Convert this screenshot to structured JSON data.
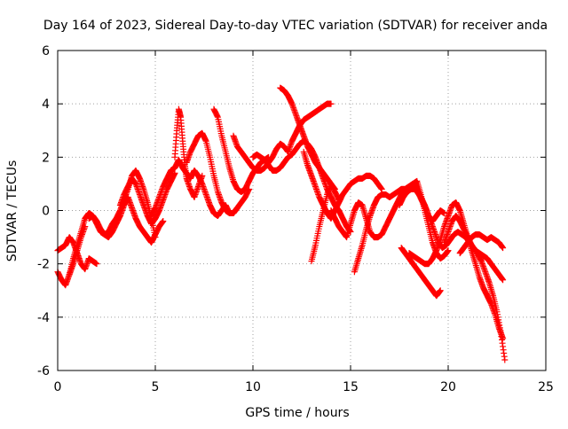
{
  "chart_data": {
    "type": "scatter",
    "title": "Day 164 of 2023, Sidereal Day-to-day VTEC variation (SDTVAR) for receiver anda",
    "xlabel": "GPS time / hours",
    "ylabel": "SDTVAR / TECUs",
    "xlim": [
      0,
      25
    ],
    "ylim": [
      -6,
      6
    ],
    "xticks": [
      0,
      5,
      10,
      15,
      20,
      25
    ],
    "yticks": [
      -6,
      -4,
      -2,
      0,
      2,
      4,
      6
    ],
    "grid": true,
    "marker": "+",
    "color": "#ff0000",
    "series": [
      {
        "name": "track-1",
        "x": [
          0.0,
          0.2,
          0.4,
          0.6,
          0.8,
          1.0,
          1.2,
          1.4,
          1.6,
          1.8,
          2.0,
          2.2,
          2.4,
          2.6,
          2.8,
          3.0,
          3.2,
          3.4,
          3.6,
          3.8,
          4.0,
          4.2,
          4.4,
          4.6,
          4.8,
          5.0,
          5.2,
          5.4
        ],
        "y": [
          -2.3,
          -2.6,
          -2.8,
          -2.4,
          -1.8,
          -1.3,
          -0.8,
          -0.3,
          -0.1,
          -0.2,
          -0.5,
          -0.8,
          -0.9,
          -1.0,
          -0.8,
          -0.5,
          -0.2,
          0.2,
          0.5,
          0.1,
          -0.3,
          -0.6,
          -0.8,
          -1.0,
          -1.2,
          -0.9,
          -0.6,
          -0.4
        ]
      },
      {
        "name": "track-2",
        "x": [
          0.0,
          0.2,
          0.4,
          0.6,
          0.8,
          1.0,
          1.2,
          1.4,
          1.6,
          1.8,
          2.0
        ],
        "y": [
          -1.5,
          -1.4,
          -1.3,
          -1.0,
          -1.2,
          -1.6,
          -2.0,
          -2.2,
          -1.8,
          -1.9,
          -2.0
        ]
      },
      {
        "name": "track-3",
        "x": [
          0.6,
          0.8,
          1.0,
          1.2,
          1.4
        ],
        "y": [
          -2.4,
          -2.0,
          -1.5,
          -1.0,
          -0.6
        ]
      },
      {
        "name": "track-4",
        "x": [
          1.6,
          1.8,
          2.0,
          2.2,
          2.4,
          2.6,
          2.8,
          3.0,
          3.2,
          3.4,
          3.6,
          3.8,
          4.0,
          4.2,
          4.4,
          4.6,
          4.8,
          5.0
        ],
        "y": [
          -0.3,
          -0.2,
          -0.4,
          -0.7,
          -0.9,
          -0.8,
          -0.5,
          -0.3,
          0.0,
          0.4,
          0.8,
          1.3,
          1.5,
          1.2,
          0.8,
          0.3,
          -0.3,
          -1.0
        ]
      },
      {
        "name": "track-5",
        "x": [
          3.2,
          3.4,
          3.6,
          3.8,
          4.0,
          4.2,
          4.4,
          4.6,
          4.8,
          5.0,
          5.2,
          5.4,
          5.6,
          5.8,
          6.0
        ],
        "y": [
          0.2,
          0.6,
          0.9,
          1.2,
          1.0,
          0.6,
          0.2,
          -0.2,
          -0.5,
          -0.3,
          0.0,
          0.4,
          0.8,
          1.1,
          1.4
        ]
      },
      {
        "name": "track-6",
        "x": [
          4.8,
          5.0,
          5.2,
          5.4,
          5.6,
          5.8,
          6.0,
          6.2,
          6.4,
          6.6,
          6.8,
          7.0,
          7.2,
          7.4,
          7.6,
          7.8,
          8.0,
          8.2,
          8.4,
          8.6,
          8.8,
          9.0,
          9.2
        ],
        "y": [
          -0.2,
          0.1,
          0.5,
          0.9,
          1.2,
          1.5,
          1.6,
          1.9,
          1.6,
          1.4,
          1.2,
          1.5,
          1.3,
          1.0,
          0.6,
          0.2,
          -0.1,
          -0.2,
          0.0,
          0.2,
          -0.1,
          -0.1,
          0.1
        ]
      },
      {
        "name": "track-7",
        "x": [
          6.0,
          6.1,
          6.2,
          6.3,
          6.4,
          6.5,
          6.6,
          6.8,
          7.0,
          7.2,
          7.4
        ],
        "y": [
          2.0,
          3.0,
          3.8,
          3.5,
          2.6,
          1.8,
          1.2,
          0.8,
          0.5,
          0.9,
          1.3
        ]
      },
      {
        "name": "track-8",
        "x": [
          6.6,
          6.8,
          7.0,
          7.2,
          7.4,
          7.6,
          7.8,
          8.0,
          8.2,
          8.4,
          8.6,
          8.8,
          9.0,
          9.2,
          9.4,
          9.6,
          9.8
        ],
        "y": [
          1.8,
          2.2,
          2.5,
          2.8,
          2.9,
          2.6,
          2.0,
          1.3,
          0.7,
          0.3,
          0.0,
          -0.1,
          -0.1,
          0.1,
          0.3,
          0.5,
          0.8
        ]
      },
      {
        "name": "track-9",
        "x": [
          8.0,
          8.2,
          8.4,
          8.6,
          8.8,
          9.0,
          9.2,
          9.4,
          9.6,
          9.8,
          10.0,
          10.2,
          10.4,
          10.6,
          10.8
        ],
        "y": [
          3.8,
          3.5,
          2.8,
          2.2,
          1.6,
          1.1,
          0.8,
          0.7,
          0.8,
          1.1,
          1.4,
          1.6,
          1.8,
          1.9,
          2.0
        ]
      },
      {
        "name": "track-10",
        "x": [
          9.0,
          9.2,
          9.4,
          9.6,
          9.8,
          10.0,
          10.2,
          10.4,
          10.6,
          10.8,
          11.0,
          11.2,
          11.4,
          11.6,
          11.8,
          12.0,
          12.2,
          12.4,
          12.6,
          12.8,
          13.0,
          13.2,
          13.4,
          13.6,
          13.8,
          14.0
        ],
        "y": [
          2.8,
          2.4,
          2.2,
          2.0,
          1.8,
          1.6,
          1.5,
          1.5,
          1.6,
          1.8,
          2.0,
          2.3,
          2.5,
          2.4,
          2.2,
          2.6,
          2.9,
          3.2,
          3.4,
          3.5,
          3.6,
          3.7,
          3.8,
          3.9,
          4.0,
          4.0
        ]
      },
      {
        "name": "track-11",
        "x": [
          11.4,
          11.6,
          11.8,
          12.0,
          12.2,
          12.4,
          12.6,
          12.8,
          13.0,
          13.2,
          13.4,
          13.6,
          13.8,
          14.0,
          14.2
        ],
        "y": [
          4.6,
          4.5,
          4.3,
          4.0,
          3.6,
          3.2,
          2.8,
          2.4,
          2.1,
          1.8,
          1.6,
          1.4,
          1.2,
          1.0,
          0.8
        ]
      },
      {
        "name": "track-12",
        "x": [
          10.0,
          10.2,
          10.4,
          10.6,
          10.8,
          11.0,
          11.2,
          11.4,
          11.6,
          11.8,
          12.0,
          12.2,
          12.4,
          12.6,
          12.8,
          13.0,
          13.2,
          13.4,
          13.6,
          13.8,
          14.0,
          14.2,
          14.4,
          14.6,
          14.8,
          15.0
        ],
        "y": [
          2.0,
          2.1,
          2.0,
          1.9,
          1.7,
          1.5,
          1.5,
          1.6,
          1.8,
          2.0,
          2.1,
          2.3,
          2.5,
          2.6,
          2.5,
          2.3,
          2.0,
          1.6,
          1.2,
          0.8,
          0.5,
          0.2,
          0.0,
          -0.3,
          -0.6,
          -0.8
        ]
      },
      {
        "name": "track-13",
        "x": [
          12.6,
          12.8,
          13.0,
          13.2,
          13.4,
          13.6,
          13.8,
          14.0,
          14.2,
          14.4,
          14.6,
          14.8,
          15.0,
          15.2,
          15.4,
          15.6,
          15.8,
          16.0,
          16.2,
          16.4,
          16.6
        ],
        "y": [
          2.2,
          1.7,
          1.3,
          0.9,
          0.5,
          0.2,
          -0.1,
          -0.3,
          0.0,
          0.3,
          0.6,
          0.8,
          1.0,
          1.1,
          1.2,
          1.2,
          1.3,
          1.3,
          1.2,
          1.0,
          0.8
        ]
      },
      {
        "name": "track-14",
        "x": [
          13.0,
          13.2,
          13.4,
          13.6,
          13.8,
          14.0,
          14.2,
          14.4
        ],
        "y": [
          -1.9,
          -1.3,
          -0.6,
          0.0,
          0.6,
          1.0,
          0.7,
          0.4
        ]
      },
      {
        "name": "track-15",
        "x": [
          14.0,
          14.2,
          14.4,
          14.6,
          14.8,
          15.0,
          15.2,
          15.4,
          15.6,
          15.8,
          16.0,
          16.2,
          16.4,
          16.6,
          16.8,
          17.0,
          17.2,
          17.4,
          17.6,
          17.8,
          18.0,
          18.2,
          18.4,
          18.6,
          18.8,
          19.0,
          19.2,
          19.4,
          19.6,
          19.8
        ],
        "y": [
          0.0,
          -0.3,
          -0.6,
          -0.8,
          -1.0,
          -0.5,
          0.0,
          0.3,
          0.2,
          -0.3,
          -0.8,
          -1.0,
          -1.0,
          -0.9,
          -0.6,
          -0.3,
          0.0,
          0.3,
          0.6,
          0.8,
          0.9,
          1.0,
          0.8,
          0.5,
          0.2,
          -0.2,
          -0.4,
          -0.2,
          0.0,
          -0.1
        ]
      },
      {
        "name": "track-16",
        "x": [
          15.2,
          15.4,
          15.6,
          15.8,
          16.0,
          16.2,
          16.4,
          16.6,
          16.8,
          17.0,
          17.2,
          17.4,
          17.6,
          17.8,
          18.0,
          18.2,
          18.4,
          18.6,
          18.8,
          19.0,
          19.2,
          19.4,
          19.6,
          19.8,
          20.0
        ],
        "y": [
          -2.3,
          -1.8,
          -1.3,
          -0.7,
          -0.2,
          0.2,
          0.5,
          0.6,
          0.6,
          0.5,
          0.6,
          0.7,
          0.8,
          0.8,
          0.9,
          1.0,
          1.1,
          0.6,
          0.0,
          -0.6,
          -1.2,
          -1.6,
          -1.8,
          -1.7,
          -1.5
        ]
      },
      {
        "name": "track-17",
        "x": [
          17.5,
          17.7,
          17.9,
          18.1,
          18.3,
          18.5,
          18.7,
          18.9,
          19.1,
          19.3,
          19.5,
          19.7,
          19.9,
          20.1,
          20.3,
          20.5,
          20.7,
          20.9,
          21.1,
          21.3,
          21.5,
          21.7,
          21.9,
          22.1,
          22.3,
          22.5,
          22.7,
          22.9
        ],
        "y": [
          0.2,
          0.5,
          0.7,
          0.8,
          0.8,
          0.6,
          0.3,
          0.0,
          -0.4,
          -0.8,
          -1.2,
          -1.4,
          -1.3,
          -1.1,
          -0.9,
          -0.8,
          -0.9,
          -1.0,
          -1.2,
          -1.4,
          -1.6,
          -1.9,
          -2.3,
          -2.7,
          -3.2,
          -3.8,
          -4.6,
          -5.6
        ]
      },
      {
        "name": "track-18",
        "x": [
          17.6,
          17.8,
          18.0,
          18.2,
          18.4,
          18.6,
          18.8,
          19.0,
          19.2,
          19.4,
          19.6
        ],
        "y": [
          -1.4,
          -1.6,
          -1.8,
          -2.0,
          -2.2,
          -2.4,
          -2.6,
          -2.8,
          -3.0,
          -3.2,
          -3.0
        ]
      },
      {
        "name": "track-19",
        "x": [
          18.0,
          18.2,
          18.4,
          18.6,
          18.8,
          19.0,
          19.2,
          19.4,
          19.6,
          19.8,
          20.0,
          20.2,
          20.4,
          20.6,
          20.8,
          21.0,
          21.2,
          21.4,
          21.6,
          21.8,
          22.0,
          22.2,
          22.4,
          22.6,
          22.8
        ],
        "y": [
          -1.6,
          -1.7,
          -1.8,
          -1.9,
          -2.0,
          -2.0,
          -1.8,
          -1.5,
          -1.1,
          -0.6,
          -0.2,
          0.2,
          0.3,
          0.0,
          -0.5,
          -1.0,
          -1.5,
          -2.0,
          -2.5,
          -2.9,
          -3.2,
          -3.5,
          -3.9,
          -4.4,
          -4.8
        ]
      },
      {
        "name": "track-20",
        "x": [
          19.8,
          20.0,
          20.2,
          20.4,
          20.6,
          20.8,
          21.0,
          21.2,
          21.4,
          21.6,
          21.8,
          22.0,
          22.2,
          22.4,
          22.6,
          22.8
        ],
        "y": [
          -1.2,
          -0.8,
          -0.4,
          -0.2,
          -0.4,
          -0.7,
          -1.0,
          -1.3,
          -1.5,
          -1.6,
          -1.7,
          -1.8,
          -2.0,
          -2.2,
          -2.4,
          -2.6
        ]
      },
      {
        "name": "track-21",
        "x": [
          20.6,
          20.8,
          21.0,
          21.2,
          21.4,
          21.6,
          21.8,
          22.0,
          22.2,
          22.4,
          22.6,
          22.8
        ],
        "y": [
          -1.6,
          -1.4,
          -1.2,
          -1.0,
          -0.9,
          -0.9,
          -1.0,
          -1.1,
          -1.0,
          -1.1,
          -1.2,
          -1.4
        ]
      }
    ]
  }
}
